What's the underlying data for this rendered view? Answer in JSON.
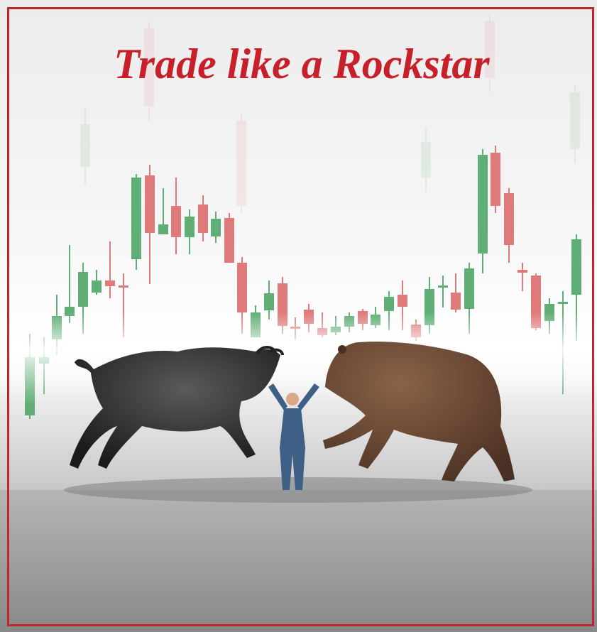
{
  "title": "Trade like a Rockstar"
}
